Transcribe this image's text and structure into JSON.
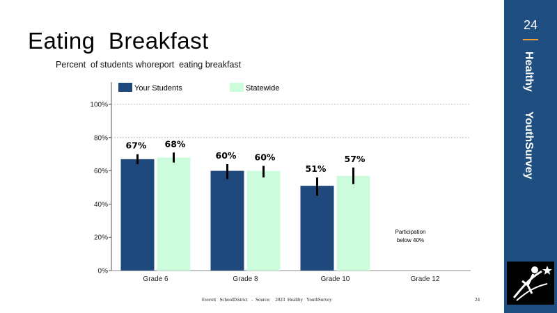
{
  "slide": {
    "title": "Eating  Breakfast",
    "subtitle": "Percent  of students whoreport  eating breakfast",
    "page_number": "24",
    "side_title_1": "Healthy",
    "side_title_2": "YouthSurvey",
    "footer": "Everett   SchoolDistrict   -  Source:    2023  Healthy   YouthSurvey",
    "footer_page": "24"
  },
  "colors": {
    "panel": "#1f4e80",
    "accent": "#f0a030",
    "your_students": "#1f497d",
    "statewide": "#ccfcdc"
  },
  "chart_data": {
    "type": "bar",
    "categories": [
      "Grade 6",
      "Grade 8",
      "Grade 10",
      "Grade 12"
    ],
    "series": [
      {
        "name": "Your Students",
        "values": [
          67,
          60,
          51,
          null
        ],
        "labels": [
          "67%",
          "60%",
          "51%",
          ""
        ],
        "error_low": [
          64,
          55,
          45,
          null
        ],
        "error_high": [
          70,
          64,
          56,
          null
        ],
        "color": "#1f497d"
      },
      {
        "name": "Statewide",
        "values": [
          68,
          60,
          57,
          null
        ],
        "labels": [
          "68%",
          "60%",
          "57%",
          ""
        ],
        "error_low": [
          65,
          56,
          52,
          null
        ],
        "error_high": [
          71,
          63,
          62,
          null
        ],
        "color": "#ccfcdc"
      }
    ],
    "ylim": [
      0,
      100
    ],
    "yticks": [
      0,
      20,
      40,
      60,
      80,
      100
    ],
    "ytick_labels": [
      "0%",
      "20%",
      "40%",
      "60%",
      "80%",
      "100%"
    ],
    "gridlines_at": [
      80,
      100
    ],
    "legend_position": "top",
    "annotation": {
      "category": "Grade 12",
      "line1": "Participation",
      "line2": "below 40%"
    }
  }
}
